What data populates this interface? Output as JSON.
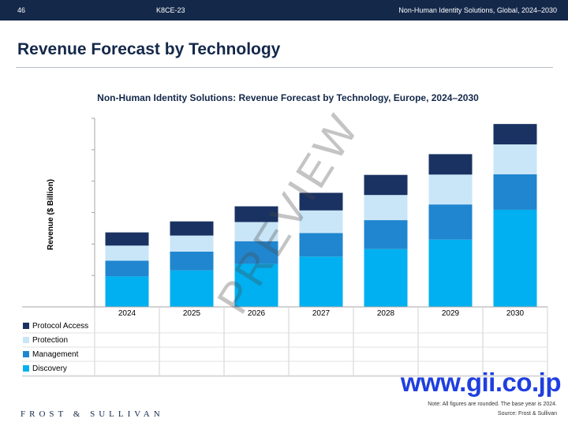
{
  "header": {
    "page_number": "46",
    "report_code": "K8CE-23",
    "report_title": "Non-Human Identity Solutions, Global, 2024–2030"
  },
  "slide_title": "Revenue Forecast by Technology",
  "chart_data": {
    "type": "bar",
    "stacked": true,
    "title": "Non-Human Identity Solutions: Revenue Forecast by Technology, Europe, 2024–2030",
    "ylabel": "Revenue ($ Billion)",
    "xlabel": "",
    "ylim": [
      0,
      6
    ],
    "y_tick_labels_shown": false,
    "grid": false,
    "legend_placement": "data-table-left",
    "categories": [
      "2024",
      "2025",
      "2026",
      "2027",
      "2028",
      "2029",
      "2030"
    ],
    "series": [
      {
        "name": "Discovery",
        "color": "#00b0f0",
        "values": [
          0.97,
          1.16,
          1.37,
          1.6,
          1.84,
          2.14,
          3.09
        ]
      },
      {
        "name": "Management",
        "color": "#1f86cf",
        "values": [
          0.5,
          0.6,
          0.72,
          0.75,
          0.92,
          1.12,
          1.13
        ]
      },
      {
        "name": "Protection",
        "color": "#c9e6f8",
        "values": [
          0.48,
          0.51,
          0.61,
          0.72,
          0.8,
          0.95,
          0.95
        ]
      },
      {
        "name": "Protocol Access",
        "color": "#1a3262",
        "values": [
          0.42,
          0.45,
          0.5,
          0.56,
          0.64,
          0.65,
          0.65
        ]
      }
    ]
  },
  "legend_order": [
    "Protocol Access",
    "Protection",
    "Management",
    "Discovery"
  ],
  "watermark": "PREVIEW",
  "footer": {
    "site": "www.gii.co.jp",
    "note": "Note: All figures are rounded. The base year is 2024.",
    "source": "Source: Frost & Sullivan",
    "brand": "FROST & SULLIVAN"
  }
}
